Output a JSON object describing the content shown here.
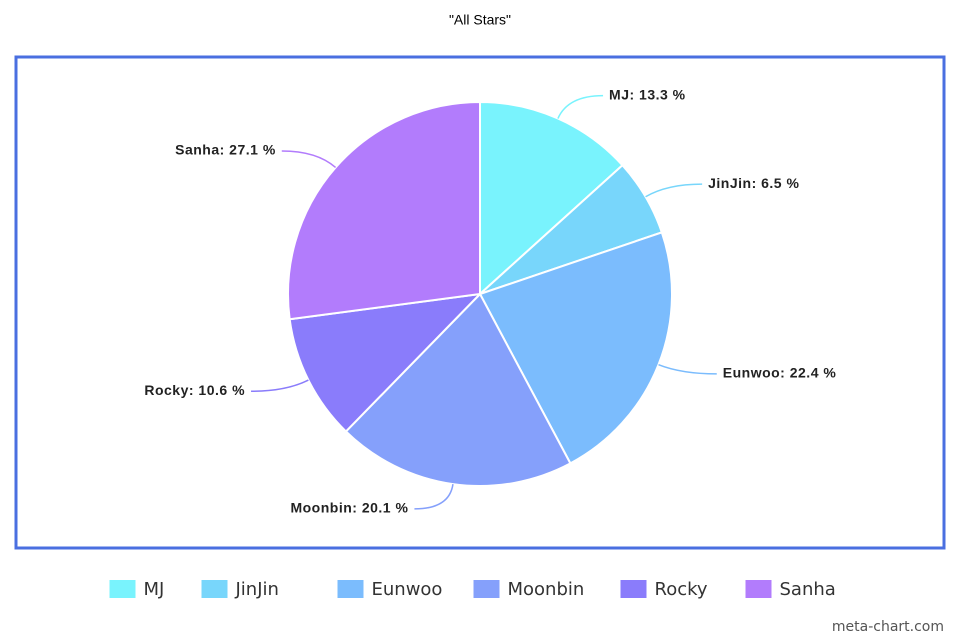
{
  "chart_data": {
    "type": "pie",
    "title": "\"All Stars\"",
    "categories": [
      "MJ",
      "JinJin",
      "Eunwoo",
      "Moonbin",
      "Rocky",
      "Sanha"
    ],
    "values": [
      13.3,
      6.5,
      22.4,
      20.1,
      10.6,
      27.1
    ],
    "value_labels": [
      "MJ: 13.3 %",
      "JinJin: 6.5 %",
      "Eunwoo: 22.4 %",
      "Moonbin: 20.1 %",
      "Rocky: 10.6 %",
      "Sanha: 27.1 %"
    ],
    "colors": [
      "#79f3fd",
      "#78d6fb",
      "#7bbcfd",
      "#85a0fb",
      "#8a7cfb",
      "#b27cfc"
    ],
    "legend": "bottom",
    "watermark": "meta-chart.com"
  }
}
